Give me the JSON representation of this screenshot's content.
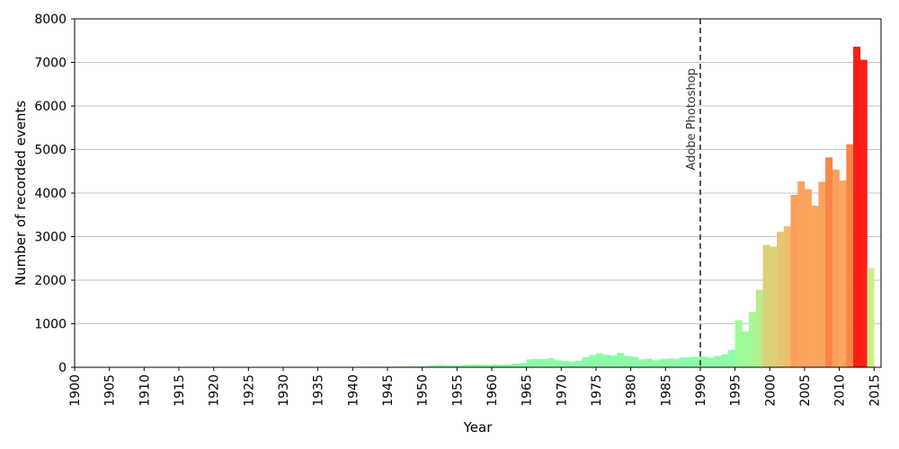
{
  "chart_data": {
    "type": "bar",
    "title": "",
    "xlabel": "Year",
    "ylabel": "Number of recorded events",
    "xlim": [
      1900,
      2016
    ],
    "ylim": [
      0,
      8000
    ],
    "x_ticks": [
      1900,
      1905,
      1910,
      1915,
      1920,
      1925,
      1930,
      1935,
      1940,
      1945,
      1950,
      1955,
      1960,
      1965,
      1970,
      1975,
      1980,
      1985,
      1990,
      1995,
      2000,
      2005,
      2010,
      2015
    ],
    "y_ticks": [
      0,
      1000,
      2000,
      3000,
      4000,
      5000,
      6000,
      7000,
      8000
    ],
    "grid": "horizontal",
    "annotation": {
      "label": "Adobe Photoshop",
      "x": 1990,
      "style": "dashed-vertical-line"
    },
    "x": [
      1900,
      1901,
      1902,
      1903,
      1904,
      1905,
      1906,
      1907,
      1908,
      1909,
      1910,
      1911,
      1912,
      1913,
      1914,
      1915,
      1916,
      1917,
      1918,
      1919,
      1920,
      1921,
      1922,
      1923,
      1924,
      1925,
      1926,
      1927,
      1928,
      1929,
      1930,
      1931,
      1932,
      1933,
      1934,
      1935,
      1936,
      1937,
      1938,
      1939,
      1940,
      1941,
      1942,
      1943,
      1944,
      1945,
      1946,
      1947,
      1948,
      1949,
      1950,
      1951,
      1952,
      1953,
      1954,
      1955,
      1956,
      1957,
      1958,
      1959,
      1960,
      1961,
      1962,
      1963,
      1964,
      1965,
      1966,
      1967,
      1968,
      1969,
      1970,
      1971,
      1972,
      1973,
      1974,
      1975,
      1976,
      1977,
      1978,
      1979,
      1980,
      1981,
      1982,
      1983,
      1984,
      1985,
      1986,
      1987,
      1988,
      1989,
      1990,
      1991,
      1992,
      1993,
      1994,
      1995,
      1996,
      1997,
      1998,
      1999,
      2000,
      2001,
      2002,
      2003,
      2004,
      2005,
      2006,
      2007,
      2008,
      2009,
      2010,
      2011,
      2012,
      2013,
      2014
    ],
    "values": [
      2,
      2,
      2,
      2,
      2,
      3,
      3,
      3,
      3,
      3,
      3,
      3,
      4,
      4,
      4,
      4,
      4,
      4,
      4,
      5,
      5,
      5,
      5,
      5,
      6,
      6,
      6,
      6,
      6,
      7,
      7,
      7,
      8,
      8,
      8,
      8,
      9,
      9,
      10,
      10,
      10,
      11,
      12,
      12,
      13,
      15,
      18,
      20,
      22,
      25,
      30,
      40,
      55,
      50,
      45,
      40,
      55,
      65,
      60,
      55,
      65,
      60,
      70,
      85,
      100,
      180,
      190,
      185,
      210,
      160,
      150,
      130,
      150,
      230,
      280,
      320,
      290,
      270,
      330,
      260,
      240,
      180,
      200,
      160,
      190,
      200,
      190,
      230,
      230,
      240,
      250,
      220,
      260,
      300,
      400,
      1080,
      820,
      1270,
      1780,
      2810,
      2770,
      3110,
      3240,
      3960,
      4270,
      4090,
      3710,
      4260,
      4820,
      4540,
      4290,
      5120,
      7360,
      7060,
      2280
    ],
    "colors": [
      "#9dfda3",
      "#9dfda3",
      "#9dfda3",
      "#9dfda3",
      "#9dfda3",
      "#9dfda3",
      "#9dfda3",
      "#9dfda3",
      "#9dfda3",
      "#9dfda3",
      "#9dfda3",
      "#9dfda3",
      "#9dfda3",
      "#9dfda3",
      "#9dfda3",
      "#9dfda3",
      "#9dfda3",
      "#9dfda3",
      "#9dfda3",
      "#9dfda3",
      "#9dfda3",
      "#9dfda3",
      "#9dfda3",
      "#9dfda3",
      "#9dfda3",
      "#9dfda3",
      "#9dfda3",
      "#9dfda3",
      "#9dfda3",
      "#9dfda3",
      "#9dfda3",
      "#9dfda3",
      "#9dfda3",
      "#9dfda3",
      "#9dfda3",
      "#9dfda3",
      "#9dfda3",
      "#9dfda3",
      "#9dfda3",
      "#9dfda3",
      "#9dfda3",
      "#9dfda3",
      "#9dfda3",
      "#9dfda3",
      "#9dfda3",
      "#9dfda3",
      "#9dfda3",
      "#9dfda3",
      "#9dfda3",
      "#9dfda3",
      "#8cfca6",
      "#8cfca6",
      "#8cfca6",
      "#8cfca6",
      "#8cfca6",
      "#8cfca6",
      "#8cfca6",
      "#8cfca6",
      "#8cfca6",
      "#8cfca6",
      "#8cfca6",
      "#8cfca6",
      "#8cfca6",
      "#8cfca6",
      "#8cfca6",
      "#8cfca6",
      "#8cfca6",
      "#8cfca6",
      "#8cfca6",
      "#8cfca6",
      "#8cfca6",
      "#8cfca6",
      "#8cfca6",
      "#8cfca6",
      "#8cfca6",
      "#8cfca6",
      "#8cfca6",
      "#8cfca6",
      "#8cfca6",
      "#8cfca6",
      "#8cfca6",
      "#8cfca6",
      "#8cfca6",
      "#8cfca6",
      "#8cfca6",
      "#8cfca6",
      "#8cfca6",
      "#8cfca6",
      "#8cfca6",
      "#8cfca6",
      "#8cfca6",
      "#8cfca6",
      "#8cfca6",
      "#8cfca6",
      "#8cfca6",
      "#9efb9a",
      "#9efb9a",
      "#a6f596",
      "#b8ec8c",
      "#d8d27a",
      "#dfd07a",
      "#e7c673",
      "#f0bd6e",
      "#fb9f5c",
      "#fca35e",
      "#fca55e",
      "#fca55e",
      "#fca55e",
      "#fb8447",
      "#fca15c",
      "#fca55e",
      "#fb8447",
      "#f81e14",
      "#fd1e18",
      "#c8f088"
    ]
  }
}
